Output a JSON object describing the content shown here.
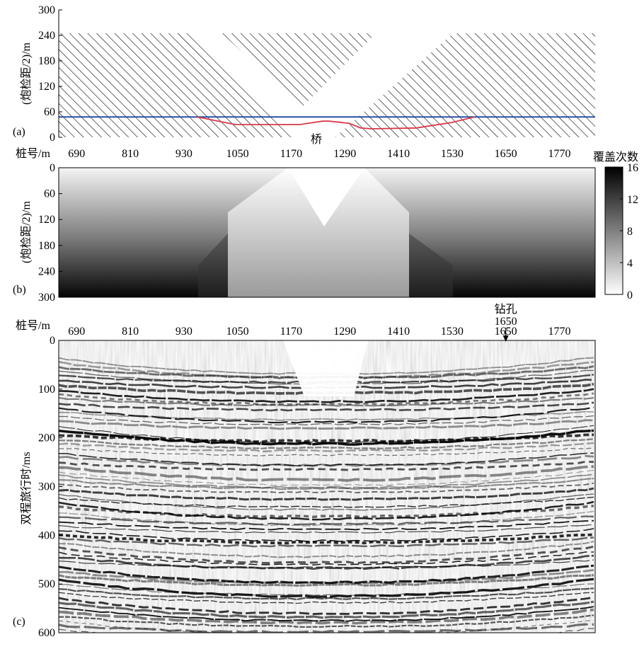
{
  "panel_labels": [
    "(a)",
    "(b)",
    "(c)"
  ],
  "colors": {
    "blue_line": "#2b4ea6",
    "red_line": "#d9384a",
    "hatch": "#000000"
  },
  "chart_data": [
    {
      "panel": "(a)",
      "type": "line",
      "xlabel": "桩号/m",
      "ylabel": "(炮检距/2)/m",
      "x_ticks": [
        690,
        810,
        930,
        1050,
        1170,
        1290,
        1410,
        1530,
        1650,
        1770
      ],
      "y_ticks": [
        0,
        60,
        120,
        180,
        240,
        300
      ],
      "ylim": [
        0,
        300
      ],
      "y_inverted": false,
      "xlim": [
        650,
        1850
      ],
      "annotation": "桥",
      "hatched_regions": [
        {
          "name": "left",
          "polygon": [
            [
              650,
              0
            ],
            [
              1180,
              0
            ],
            [
              950,
              245
            ],
            [
              650,
              245
            ]
          ]
        },
        {
          "name": "middle",
          "polygon": [
            [
              1015,
              245
            ],
            [
              1360,
              245
            ],
            [
              1193,
              70
            ]
          ]
        },
        {
          "name": "right",
          "polygon": [
            [
              1268,
              0
            ],
            [
              1850,
              0
            ],
            [
              1850,
              245
            ],
            [
              1532,
              245
            ]
          ]
        }
      ],
      "series": [
        {
          "color": "blue",
          "x": [
            650,
            1850
          ],
          "values": [
            48,
            48
          ]
        },
        {
          "color": "red",
          "x": [
            960,
            1045,
            1190,
            1220,
            1240,
            1255,
            1300,
            1325,
            1350,
            1450,
            1530,
            1580
          ],
          "values": [
            48,
            30,
            30,
            35,
            38,
            38,
            33,
            22,
            20,
            22,
            35,
            48
          ]
        }
      ]
    },
    {
      "panel": "(b)",
      "type": "heatmap",
      "ylabel": "(炮检距/2)/m",
      "y_ticks": [
        0,
        60,
        120,
        180,
        240,
        300
      ],
      "ylim": [
        0,
        300
      ],
      "y_inverted": true,
      "xlim": [
        650,
        1850
      ],
      "colorbar": {
        "title": "覆盖次数",
        "ticks": [
          0,
          4,
          8,
          12,
          16
        ],
        "range": [
          0,
          16
        ]
      }
    },
    {
      "panel": "(c)",
      "type": "heatmap",
      "xlabel": "桩号/m",
      "ylabel": "双程旅行时/ms",
      "x_ticks": [
        690,
        810,
        930,
        1050,
        1170,
        1290,
        1410,
        1530,
        1650,
        1770
      ],
      "y_ticks": [
        0,
        100,
        200,
        300,
        400,
        500,
        600
      ],
      "ylim": [
        0,
        600
      ],
      "y_inverted": true,
      "xlim": [
        650,
        1850
      ],
      "annotation": {
        "text": "钻孔",
        "sub": "1650",
        "x": 1650
      }
    }
  ]
}
